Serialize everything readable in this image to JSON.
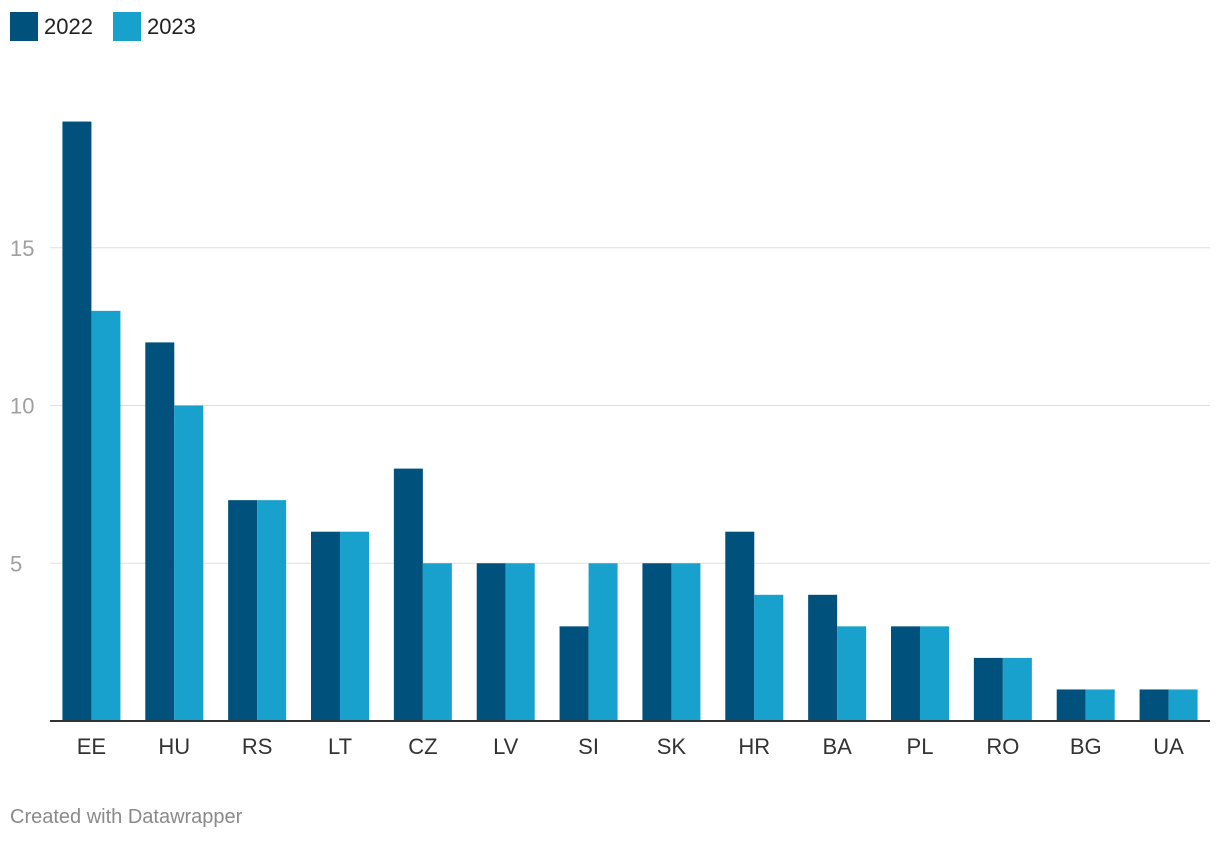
{
  "colors": {
    "series_2022": "#00527c",
    "series_2023": "#18a1cd",
    "grid": "#e0e0e0",
    "baseline": "#333333",
    "tick_label": "#a0a0a0",
    "category_label": "#333333"
  },
  "legend": {
    "items": [
      {
        "label": "2022",
        "color": "#00527c"
      },
      {
        "label": "2023",
        "color": "#18a1cd"
      }
    ]
  },
  "chart_data": {
    "type": "bar",
    "title": "",
    "xlabel": "",
    "ylabel": "",
    "categories": [
      "EE",
      "HU",
      "RS",
      "LT",
      "CZ",
      "LV",
      "SI",
      "SK",
      "HR",
      "BA",
      "PL",
      "RO",
      "BG",
      "UA"
    ],
    "series": [
      {
        "name": "2022",
        "values": [
          19,
          12,
          7,
          6,
          8,
          5,
          3,
          5,
          6,
          4,
          3,
          2,
          1,
          1
        ]
      },
      {
        "name": "2023",
        "values": [
          13,
          10,
          7,
          6,
          5,
          5,
          5,
          5,
          4,
          3,
          3,
          2,
          1,
          1
        ]
      }
    ],
    "ylim": [
      0,
      20
    ],
    "yticks": [
      5,
      10,
      15
    ],
    "grid": true,
    "legend_position": "top-left"
  },
  "footer": {
    "credit": "Created with Datawrapper"
  }
}
